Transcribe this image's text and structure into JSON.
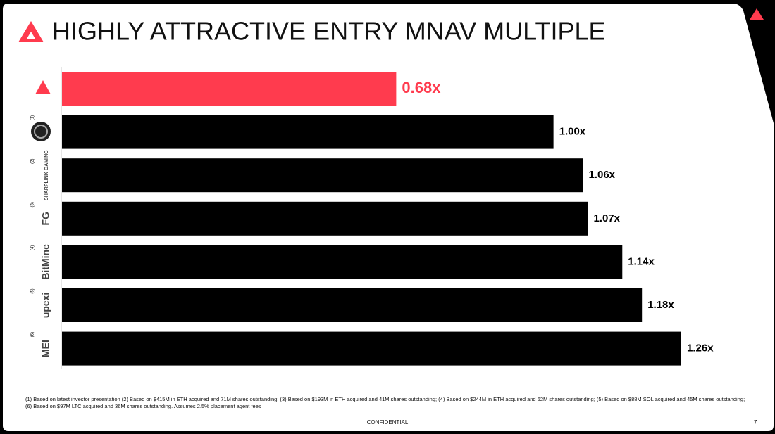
{
  "title": "HIGHLY ATTRACTIVE ENTRY MNAV MULTIPLE",
  "chart_data": {
    "type": "bar",
    "orientation": "horizontal",
    "categories": [
      null,
      null,
      "SHARPLINK GAMING",
      "FG",
      "BitMine",
      "upexi",
      "MEI"
    ],
    "category_notes": [
      null,
      "(1)",
      "(2)",
      "(3)",
      "(4)",
      "(5)",
      "(6)"
    ],
    "values": [
      0.68,
      1.0,
      1.06,
      1.07,
      1.14,
      1.18,
      1.26
    ],
    "value_labels": [
      "0.68x",
      "1.00x",
      "1.06x",
      "1.07x",
      "1.14x",
      "1.18x",
      "1.26x"
    ],
    "colors": [
      "#ff3b4e",
      "#000000",
      "#000000",
      "#000000",
      "#000000",
      "#000000",
      "#000000"
    ],
    "xlim": [
      0,
      1.26
    ]
  },
  "footnote": "(1) Based on latest investor presentation (2) Based on $415M in ETH acquired and 71M shares outstanding; (3) Based on $193M in ETH acquired and 41M shares outstanding; (4) Based on $244M in ETH acquired and 62M shares outstanding; (5) Based on $88M SOL acquired and 45M shares outstanding; (6) Based on $97M LTC acquired and 36M shares outstanding. Assumes 2.5% placement agent fees",
  "confidential": "CONFIDENTIAL",
  "page_number": "7"
}
